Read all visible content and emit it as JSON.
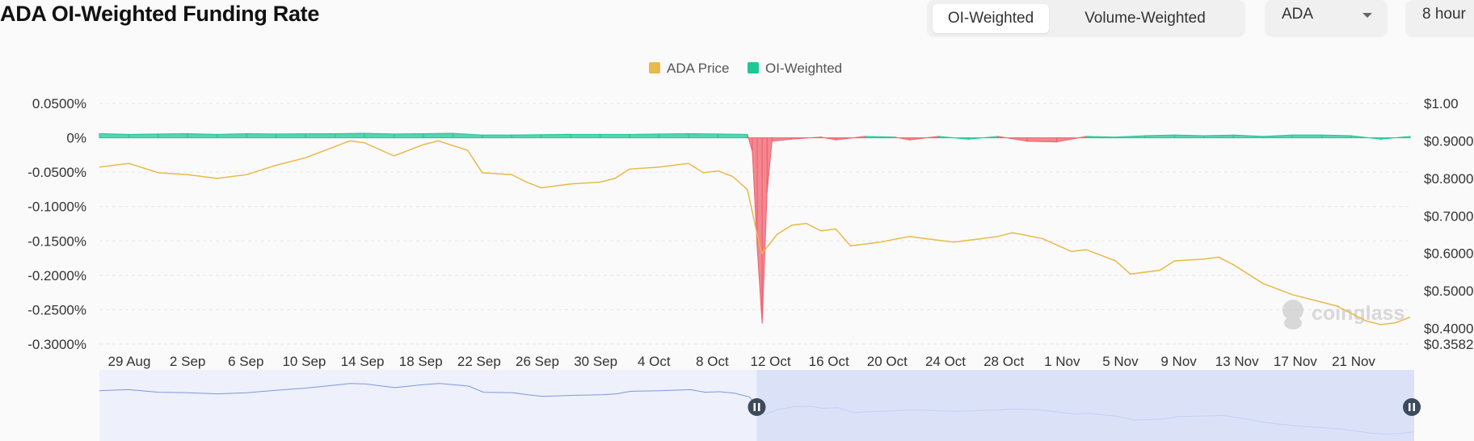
{
  "header": {
    "title": "ADA OI-Weighted Funding Rate",
    "tabs": [
      {
        "label": "OI-Weighted",
        "active": true
      },
      {
        "label": "Volume-Weighted",
        "active": false
      }
    ],
    "symbol": "ADA",
    "interval": "8 hour"
  },
  "watermark": "coinglass",
  "chart_data": {
    "type": "area",
    "legend_position": "top-center",
    "legend": [
      {
        "name": "ADA Price",
        "color": "#e9b949"
      },
      {
        "name": "OI-Weighted",
        "color": "#1fc796"
      }
    ],
    "x_tick_labels": [
      "29 Aug",
      "2 Sep",
      "6 Sep",
      "10 Sep",
      "14 Sep",
      "18 Sep",
      "22 Sep",
      "26 Sep",
      "30 Sep",
      "4 Oct",
      "8 Oct",
      "12 Oct",
      "16 Oct",
      "20 Oct",
      "24 Oct",
      "28 Oct",
      "1 Nov",
      "5 Nov",
      "9 Nov",
      "13 Nov",
      "17 Nov",
      "21 Nov"
    ],
    "y_left": {
      "min": -0.3,
      "max": 0.05,
      "ticks": [
        0.05,
        0,
        -0.05,
        -0.1,
        -0.15,
        -0.2,
        -0.25,
        -0.3
      ],
      "labels": [
        "0.0500%",
        "0%",
        "-0.0500%",
        "-0.1000%",
        "-0.1500%",
        "-0.2000%",
        "-0.2500%",
        "-0.3000%"
      ]
    },
    "y_right": {
      "min": 0.3582,
      "max": 1.0,
      "ticks": [
        1.0,
        0.9,
        0.8,
        0.7,
        0.6,
        0.5,
        0.4,
        0.3582
      ],
      "labels": [
        "$1.00",
        "$0.9000",
        "$0.8000",
        "$0.7000",
        "$0.6000",
        "$0.5000",
        "$0.4000",
        "$0.3582"
      ]
    },
    "grid": true,
    "x_date_range": [
      "2025-08-27",
      "2025-11-24"
    ],
    "series": [
      {
        "name": "ADA Price",
        "axis": "right",
        "color": "#e9b949",
        "points": [
          [
            "2025-08-27",
            0.83
          ],
          [
            "2025-08-29",
            0.84
          ],
          [
            "2025-08-31",
            0.815
          ],
          [
            "2025-09-02",
            0.81
          ],
          [
            "2025-09-04",
            0.8
          ],
          [
            "2025-09-06",
            0.81
          ],
          [
            "2025-09-08",
            0.835
          ],
          [
            "2025-09-10",
            0.855
          ],
          [
            "2025-09-12",
            0.885
          ],
          [
            "2025-09-13",
            0.9
          ],
          [
            "2025-09-14",
            0.895
          ],
          [
            "2025-09-16",
            0.86
          ],
          [
            "2025-09-18",
            0.89
          ],
          [
            "2025-09-19",
            0.9
          ],
          [
            "2025-09-21",
            0.875
          ],
          [
            "2025-09-22",
            0.815
          ],
          [
            "2025-09-24",
            0.81
          ],
          [
            "2025-09-25",
            0.79
          ],
          [
            "2025-09-26",
            0.775
          ],
          [
            "2025-09-28",
            0.785
          ],
          [
            "2025-09-30",
            0.79
          ],
          [
            "2025-10-01",
            0.8
          ],
          [
            "2025-10-02",
            0.825
          ],
          [
            "2025-10-04",
            0.83
          ],
          [
            "2025-10-06",
            0.84
          ],
          [
            "2025-10-07",
            0.815
          ],
          [
            "2025-10-08",
            0.82
          ],
          [
            "2025-10-09",
            0.805
          ],
          [
            "2025-10-10",
            0.77
          ],
          [
            "2025-10-10T20:00:00",
            0.62
          ],
          [
            "2025-10-11",
            0.6
          ],
          [
            "2025-10-12",
            0.65
          ],
          [
            "2025-10-13",
            0.675
          ],
          [
            "2025-10-14",
            0.68
          ],
          [
            "2025-10-15",
            0.66
          ],
          [
            "2025-10-16",
            0.665
          ],
          [
            "2025-10-17",
            0.62
          ],
          [
            "2025-10-19",
            0.63
          ],
          [
            "2025-10-21",
            0.645
          ],
          [
            "2025-10-22",
            0.64
          ],
          [
            "2025-10-24",
            0.63
          ],
          [
            "2025-10-26",
            0.64
          ],
          [
            "2025-10-27",
            0.645
          ],
          [
            "2025-10-28",
            0.655
          ],
          [
            "2025-10-30",
            0.64
          ],
          [
            "2025-11-01",
            0.605
          ],
          [
            "2025-11-02",
            0.61
          ],
          [
            "2025-11-04",
            0.58
          ],
          [
            "2025-11-05",
            0.545
          ],
          [
            "2025-11-07",
            0.555
          ],
          [
            "2025-11-08",
            0.58
          ],
          [
            "2025-11-10",
            0.585
          ],
          [
            "2025-11-11",
            0.59
          ],
          [
            "2025-11-12",
            0.57
          ],
          [
            "2025-11-14",
            0.52
          ],
          [
            "2025-11-16",
            0.49
          ],
          [
            "2025-11-18",
            0.47
          ],
          [
            "2025-11-19",
            0.46
          ],
          [
            "2025-11-21",
            0.42
          ],
          [
            "2025-11-22",
            0.41
          ],
          [
            "2025-11-23",
            0.415
          ],
          [
            "2025-11-24",
            0.43
          ]
        ]
      },
      {
        "name": "OI-Weighted",
        "axis": "left",
        "color": "#1fc796",
        "negative_color": "#f0616d",
        "points": [
          [
            "2025-08-27",
            0.006
          ],
          [
            "2025-08-29",
            0.005
          ],
          [
            "2025-08-31",
            0.0055
          ],
          [
            "2025-09-02",
            0.006
          ],
          [
            "2025-09-04",
            0.005
          ],
          [
            "2025-09-06",
            0.006
          ],
          [
            "2025-09-08",
            0.0055
          ],
          [
            "2025-09-10",
            0.0058
          ],
          [
            "2025-09-12",
            0.006
          ],
          [
            "2025-09-14",
            0.0065
          ],
          [
            "2025-09-16",
            0.0055
          ],
          [
            "2025-09-18",
            0.006
          ],
          [
            "2025-09-20",
            0.0065
          ],
          [
            "2025-09-22",
            0.004
          ],
          [
            "2025-09-24",
            0.004
          ],
          [
            "2025-09-26",
            0.0045
          ],
          [
            "2025-09-28",
            0.005
          ],
          [
            "2025-09-30",
            0.005
          ],
          [
            "2025-10-02",
            0.005
          ],
          [
            "2025-10-04",
            0.0055
          ],
          [
            "2025-10-06",
            0.006
          ],
          [
            "2025-10-08",
            0.0055
          ],
          [
            "2025-10-10",
            0.005
          ],
          [
            "2025-10-10T08:00:00",
            -0.02
          ],
          [
            "2025-10-10T16:00:00",
            -0.16
          ],
          [
            "2025-10-11",
            -0.27
          ],
          [
            "2025-10-11T08:00:00",
            -0.08
          ],
          [
            "2025-10-11T16:00:00",
            -0.005
          ],
          [
            "2025-10-13",
            -0.002
          ],
          [
            "2025-10-15",
            0.001
          ],
          [
            "2025-10-16",
            -0.003
          ],
          [
            "2025-10-18",
            0.002
          ],
          [
            "2025-10-20",
            0.001
          ],
          [
            "2025-10-21",
            -0.003
          ],
          [
            "2025-10-23",
            0.002
          ],
          [
            "2025-10-25",
            -0.002
          ],
          [
            "2025-10-27",
            0.002
          ],
          [
            "2025-10-29",
            -0.005
          ],
          [
            "2025-10-31",
            -0.006
          ],
          [
            "2025-11-02",
            0.002
          ],
          [
            "2025-11-04",
            0.001
          ],
          [
            "2025-11-06",
            0.003
          ],
          [
            "2025-11-08",
            0.004
          ],
          [
            "2025-11-10",
            0.003
          ],
          [
            "2025-11-12",
            0.004
          ],
          [
            "2025-11-14",
            0.002
          ],
          [
            "2025-11-16",
            0.004
          ],
          [
            "2025-11-18",
            0.004
          ],
          [
            "2025-11-20",
            0.003
          ],
          [
            "2025-11-22",
            -0.002
          ],
          [
            "2025-11-24",
            0.002
          ]
        ]
      }
    ]
  },
  "navigator": {
    "selection_start": 0.5,
    "selection_end": 1.0
  }
}
